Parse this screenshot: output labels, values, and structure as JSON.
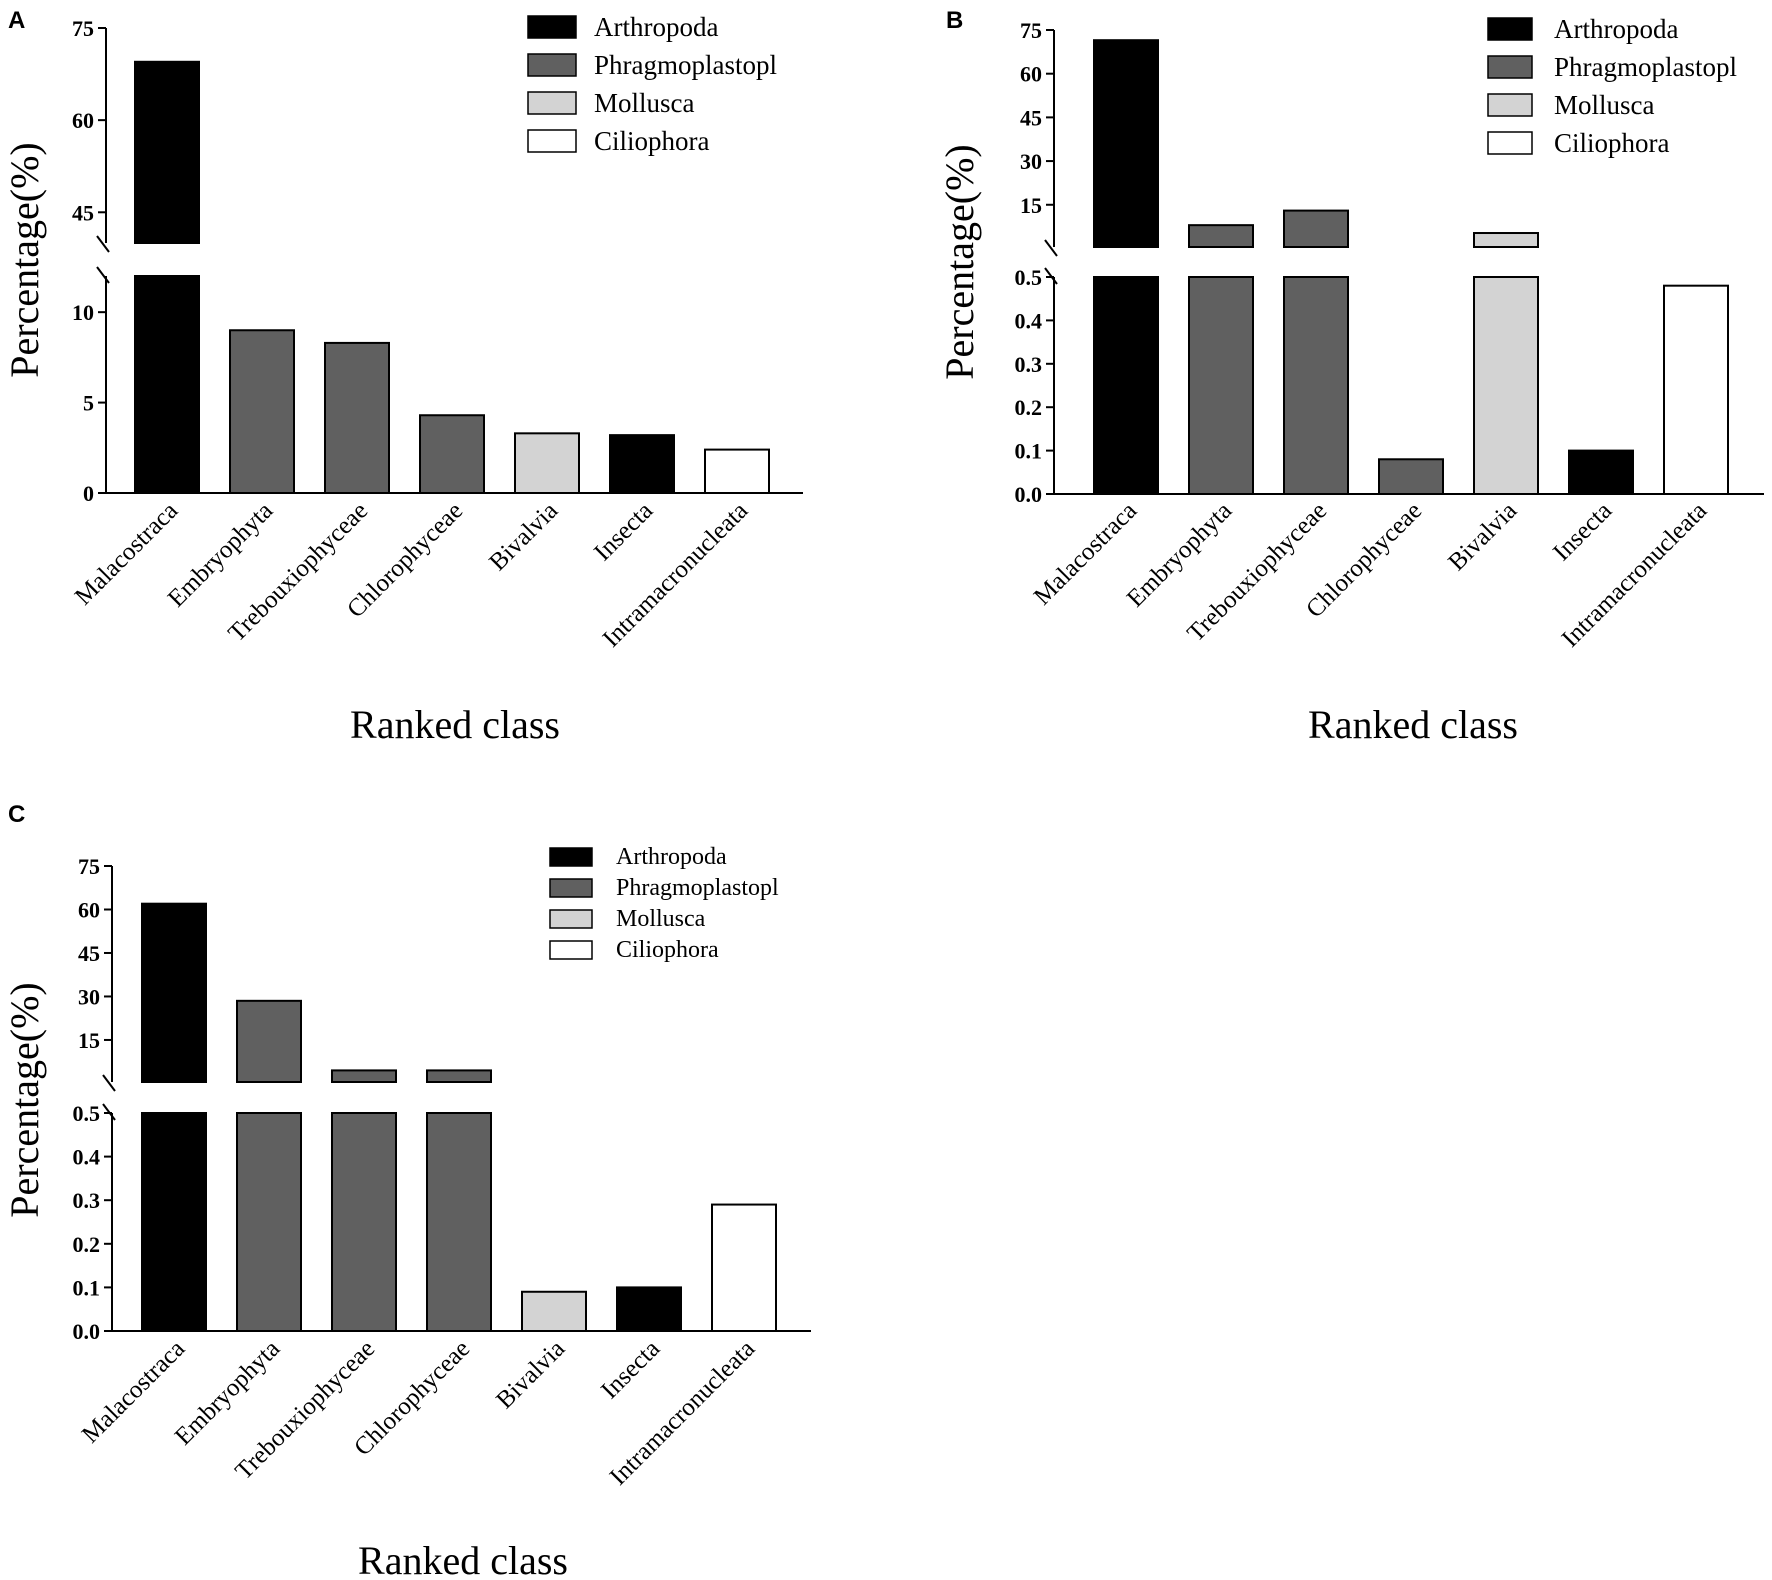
{
  "colors": {
    "Arthropoda": "#000000",
    "Phragmoplastopl": "#606060",
    "Mollusca": "#d3d3d3",
    "Ciliophora": "#ffffff"
  },
  "chart_data": [
    {
      "panel": "A",
      "type": "bar",
      "title": "",
      "xlabel": "Ranked class",
      "ylabel": "Percentage(%)",
      "categories": [
        "Malacostraca",
        "Embryophyta",
        "Trebouxiophyceae",
        "Chlorophyceae",
        "Bivalvia",
        "Insecta",
        "Intramacronucleata"
      ],
      "phyla": [
        "Arthropoda",
        "Phragmoplastopl",
        "Phragmoplastopl",
        "Phragmoplastopl",
        "Mollusca",
        "Arthropoda",
        "Ciliophora"
      ],
      "values": [
        69.5,
        9.0,
        8.3,
        4.3,
        3.3,
        3.2,
        2.4
      ],
      "legend": [
        "Arthropoda",
        "Phragmoplastopl",
        "Mollusca",
        "Ciliophora"
      ],
      "axis_break": {
        "lower": [
          0,
          12
        ],
        "upper": [
          40,
          75
        ]
      },
      "lower_ticks": [
        0,
        5,
        10
      ],
      "upper_ticks": [
        45,
        60,
        75
      ]
    },
    {
      "panel": "B",
      "type": "bar",
      "title": "",
      "xlabel": "Ranked class",
      "ylabel": "Percentage(%)",
      "categories": [
        "Malacostraca",
        "Embryophyta",
        "Trebouxiophyceae",
        "Chlorophyceae",
        "Bivalvia",
        "Insecta",
        "Intramacronucleata"
      ],
      "phyla": [
        "Arthropoda",
        "Phragmoplastopl",
        "Phragmoplastopl",
        "Phragmoplastopl",
        "Mollusca",
        "Arthropoda",
        "Ciliophora"
      ],
      "values": [
        71.5,
        8.0,
        13.0,
        0.08,
        5.3,
        0.1,
        0.48
      ],
      "legend": [
        "Arthropoda",
        "Phragmoplastopl",
        "Mollusca",
        "Ciliophora"
      ],
      "axis_break": {
        "lower": [
          0,
          0.5
        ],
        "upper": [
          0.5,
          75
        ]
      },
      "lower_ticks": [
        "0.0",
        "0.1",
        "0.2",
        "0.3",
        "0.4",
        "0.5"
      ],
      "upper_ticks": [
        15,
        30,
        45,
        60,
        75
      ]
    },
    {
      "panel": "C",
      "type": "bar",
      "title": "",
      "xlabel": "Ranked class",
      "ylabel": "Percentage(%)",
      "categories": [
        "Malacostraca",
        "Embryophyta",
        "Trebouxiophyceae",
        "Chlorophyceae",
        "Bivalvia",
        "Insecta",
        "Intramacronucleata"
      ],
      "phyla": [
        "Arthropoda",
        "Phragmoplastopl",
        "Phragmoplastopl",
        "Phragmoplastopl",
        "Mollusca",
        "Arthropoda",
        "Ciliophora"
      ],
      "values": [
        62.0,
        28.5,
        4.5,
        4.5,
        0.09,
        0.1,
        0.29
      ],
      "legend": [
        "Arthropoda",
        "Phragmoplastopl",
        "Mollusca",
        "Ciliophora"
      ],
      "axis_break": {
        "lower": [
          0,
          0.5
        ],
        "upper": [
          0.5,
          75
        ]
      },
      "lower_ticks": [
        "0.0",
        "0.1",
        "0.2",
        "0.3",
        "0.4",
        "0.5"
      ],
      "upper_ticks": [
        15,
        30,
        45,
        60,
        75
      ]
    }
  ]
}
